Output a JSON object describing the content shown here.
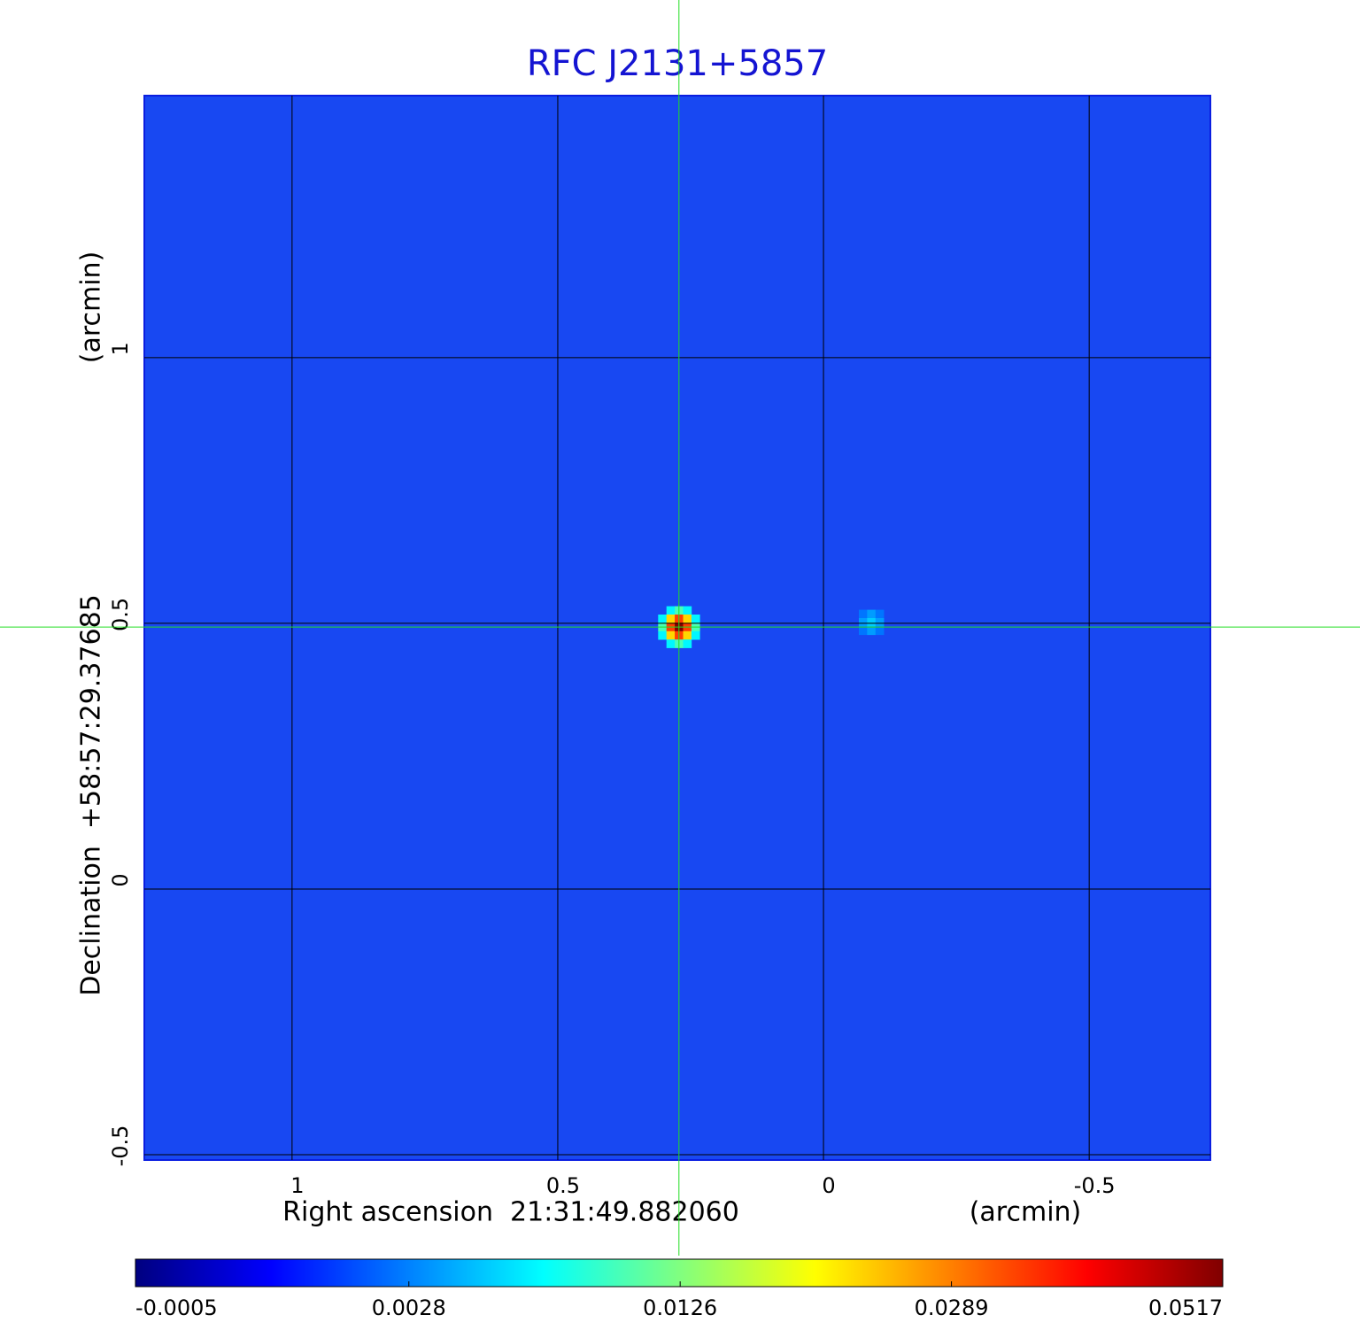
{
  "chart_data": {
    "type": "image",
    "title": "RFC J2131+5857",
    "x_label": "Right ascension  21:31:49.882060",
    "x_unit": "(arcmin)",
    "y_label": "Declination  +58:57:29.37685",
    "y_unit": "(arcmin)",
    "xlim": [
      1.278,
      -0.728
    ],
    "xticks": [
      1.0,
      0.5,
      0.0,
      -0.5
    ],
    "ylim": [
      -0.51,
      1.493
    ],
    "yticks": [
      -0.5,
      0.0,
      0.5,
      1.0
    ],
    "grid": true,
    "colormap": "jet",
    "color_scale": "sqrt",
    "clim": [
      -0.0005,
      0.0517
    ],
    "cticks": [
      -0.0005,
      0.0028,
      0.0126,
      0.0289,
      0.0517
    ],
    "sources": {
      "x": [
        0.272,
        -0.09
      ],
      "y": [
        0.493,
        0.502
      ],
      "peak": [
        0.0517,
        0.005
      ]
    },
    "crosshair": {
      "x": 0.272,
      "y": 0.493,
      "color": "#22dd22"
    },
    "title_color": "#1414d2"
  }
}
